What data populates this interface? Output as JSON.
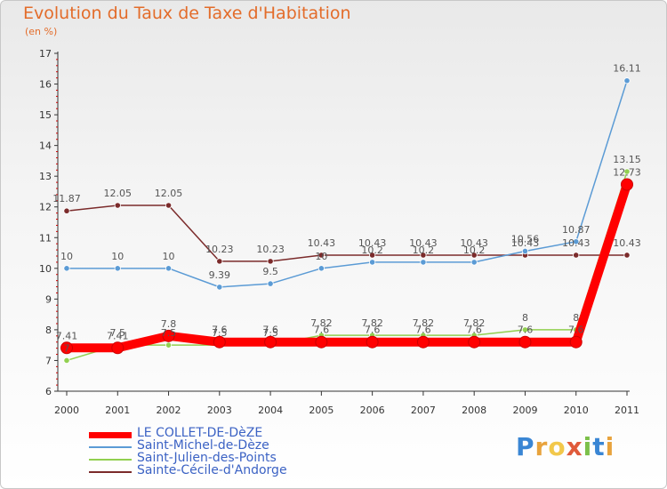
{
  "chart_data": {
    "type": "line",
    "title": "Evolution du Taux de Taxe d'Habitation",
    "subtitle": "(en %)",
    "x": [
      "2000",
      "2001",
      "2002",
      "2003",
      "2004",
      "2005",
      "2006",
      "2007",
      "2008",
      "2009",
      "2010",
      "2011"
    ],
    "yticks": [
      "6",
      "7",
      "8",
      "9",
      "10",
      "11",
      "12",
      "13",
      "14",
      "15",
      "16",
      "17"
    ],
    "ylim": [
      6,
      17
    ],
    "series": [
      {
        "name": "LE COLLET-DE-DèZE",
        "color": "#ff0000",
        "values": [
          7.41,
          7.41,
          7.8,
          7.6,
          7.6,
          7.6,
          7.6,
          7.6,
          7.6,
          7.6,
          7.6,
          12.73
        ],
        "labels": [
          "7.41",
          "7.41",
          "7.8",
          "7.6",
          "7.6",
          "7.6",
          "7.6",
          "7.6",
          "7.6",
          "7.6",
          "7.6",
          "12.73"
        ]
      },
      {
        "name": "Saint-Michel-de-Dèze",
        "color": "#5b9bd5",
        "values": [
          10,
          10,
          10,
          9.39,
          9.5,
          10,
          10.2,
          10.2,
          10.2,
          10.56,
          10.87,
          16.11
        ],
        "labels": [
          "10",
          "10",
          "10",
          "9.39",
          "9.5",
          "10",
          "10.2",
          "10.2",
          "10.2",
          "10.56",
          "10.87",
          "16.11"
        ]
      },
      {
        "name": "Saint-Julien-des-Points",
        "color": "#92d050",
        "values": [
          7,
          7.5,
          7.5,
          7.5,
          7.5,
          7.82,
          7.82,
          7.82,
          7.82,
          8,
          8,
          13.15
        ],
        "labels": [
          "7",
          "7.5",
          "7.5",
          "7.5",
          "7.5",
          "7.82",
          "7.82",
          "7.82",
          "7.82",
          "8",
          "8",
          "13.15"
        ]
      },
      {
        "name": "Sainte-Cécile-d'Andorge",
        "color": "#7b2b2b",
        "values": [
          11.87,
          12.05,
          12.05,
          10.23,
          10.23,
          10.43,
          10.43,
          10.43,
          10.43,
          10.43,
          10.43,
          10.43
        ],
        "labels": [
          "11.87",
          "12.05",
          "12.05",
          "10.23",
          "10.23",
          "10.43",
          "10.43",
          "10.43",
          "10.43",
          "10.43",
          "10.43",
          "10.43"
        ]
      }
    ],
    "legend_position": "bottom-left",
    "grid": false
  },
  "brand": {
    "name": "Proxiti",
    "letters": [
      "P",
      "r",
      "o",
      "x",
      "i",
      "t",
      "i"
    ],
    "letter_colors": [
      "#3a86d4",
      "#e8a33d",
      "#f2c84b",
      "#e05a3a",
      "#7cc04a",
      "#3a86d4",
      "#e8a33d"
    ]
  }
}
